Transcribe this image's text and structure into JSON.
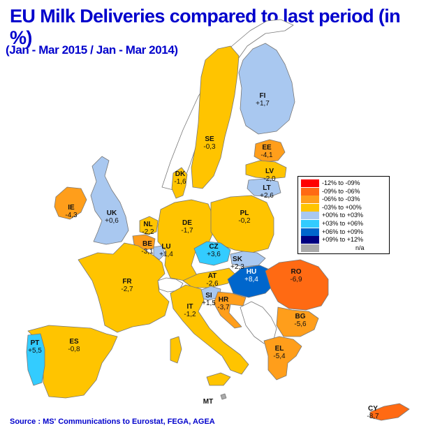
{
  "title": "EU Milk Deliveries compared to last period (in %)",
  "subtitle": "(Jan - Mar 2015 / Jan - Mar 2014)",
  "source": "Source : MS' Communications to Eurostat, FEGA, AGEA",
  "colors": {
    "sea": "#ffffff",
    "non_eu": "#ffffff",
    "border": "#777777",
    "red": "#ff0000",
    "dark_orange": "#ff6a13",
    "orange": "#ff9e1b",
    "yellow": "#ffc400",
    "light_blue": "#a9c8f0",
    "cyan": "#33ccff",
    "mid_blue": "#0066cc",
    "navy": "#000080",
    "na": "#aaaaaa"
  },
  "legend": [
    {
      "label": "-12% to -09%",
      "color": "#ff0000"
    },
    {
      "label": "-09% to -06%",
      "color": "#ff6a13"
    },
    {
      "label": "-06% to -03%",
      "color": "#ff9e1b"
    },
    {
      "label": "-03% to +00%",
      "color": "#ffc400"
    },
    {
      "label": "+00% to +03%",
      "color": "#a9c8f0"
    },
    {
      "label": "+03% to +06%",
      "color": "#33ccff"
    },
    {
      "label": "+06% to +09%",
      "color": "#0066cc"
    },
    {
      "label": "+09% to +12%",
      "color": "#000080"
    },
    {
      "label": "n/a",
      "color": "#aaaaaa"
    }
  ],
  "countries": [
    {
      "code": "FI",
      "value": "+1,7",
      "class": "+00% to +03%"
    },
    {
      "code": "SE",
      "value": "-0,3",
      "class": "-03% to +00%"
    },
    {
      "code": "EE",
      "value": "-4,1",
      "class": "-06% to -03%"
    },
    {
      "code": "LV",
      "value": "-2,0",
      "class": "-03% to +00%"
    },
    {
      "code": "LT",
      "value": "+2,6",
      "class": "+00% to +03%"
    },
    {
      "code": "DK",
      "value": "-1,6",
      "class": "-03% to +00%"
    },
    {
      "code": "IE",
      "value": "-4,3",
      "class": "-06% to -03%"
    },
    {
      "code": "UK",
      "value": "+0,6",
      "class": "+00% to +03%"
    },
    {
      "code": "NL",
      "value": "-2,2",
      "class": "-03% to +00%"
    },
    {
      "code": "BE",
      "value": "-3,1",
      "class": "-06% to -03%"
    },
    {
      "code": "LU",
      "value": "+1,4",
      "class": "+00% to +03%"
    },
    {
      "code": "DE",
      "value": "-1,7",
      "class": "-03% to +00%"
    },
    {
      "code": "PL",
      "value": "-0,2",
      "class": "-03% to +00%"
    },
    {
      "code": "CZ",
      "value": "+3,6",
      "class": "+03% to +06%"
    },
    {
      "code": "SK",
      "value": "+2,3",
      "class": "+00% to +03%"
    },
    {
      "code": "FR",
      "value": "-2,7",
      "class": "-03% to +00%"
    },
    {
      "code": "AT",
      "value": "-2,6",
      "class": "-03% to +00%"
    },
    {
      "code": "HU",
      "value": "+8,4",
      "class": "+06% to +09%"
    },
    {
      "code": "RO",
      "value": "-6,9",
      "class": "-09% to -06%"
    },
    {
      "code": "SI",
      "value": "+1,5",
      "class": "+00% to +03%"
    },
    {
      "code": "HR",
      "value": "-3,7",
      "class": "-06% to -03%"
    },
    {
      "code": "IT",
      "value": "-1,2",
      "class": "-03% to +00%"
    },
    {
      "code": "BG",
      "value": "-5,6",
      "class": "-06% to -03%"
    },
    {
      "code": "PT",
      "value": "+5,5",
      "class": "+03% to +06%"
    },
    {
      "code": "ES",
      "value": "-0,8",
      "class": "-03% to +00%"
    },
    {
      "code": "EL",
      "value": "-5,4",
      "class": "-06% to -03%"
    },
    {
      "code": "MT",
      "value": "",
      "class": "n/a"
    },
    {
      "code": "CY",
      "value": "-8,7",
      "class": "-09% to -06%"
    }
  ]
}
